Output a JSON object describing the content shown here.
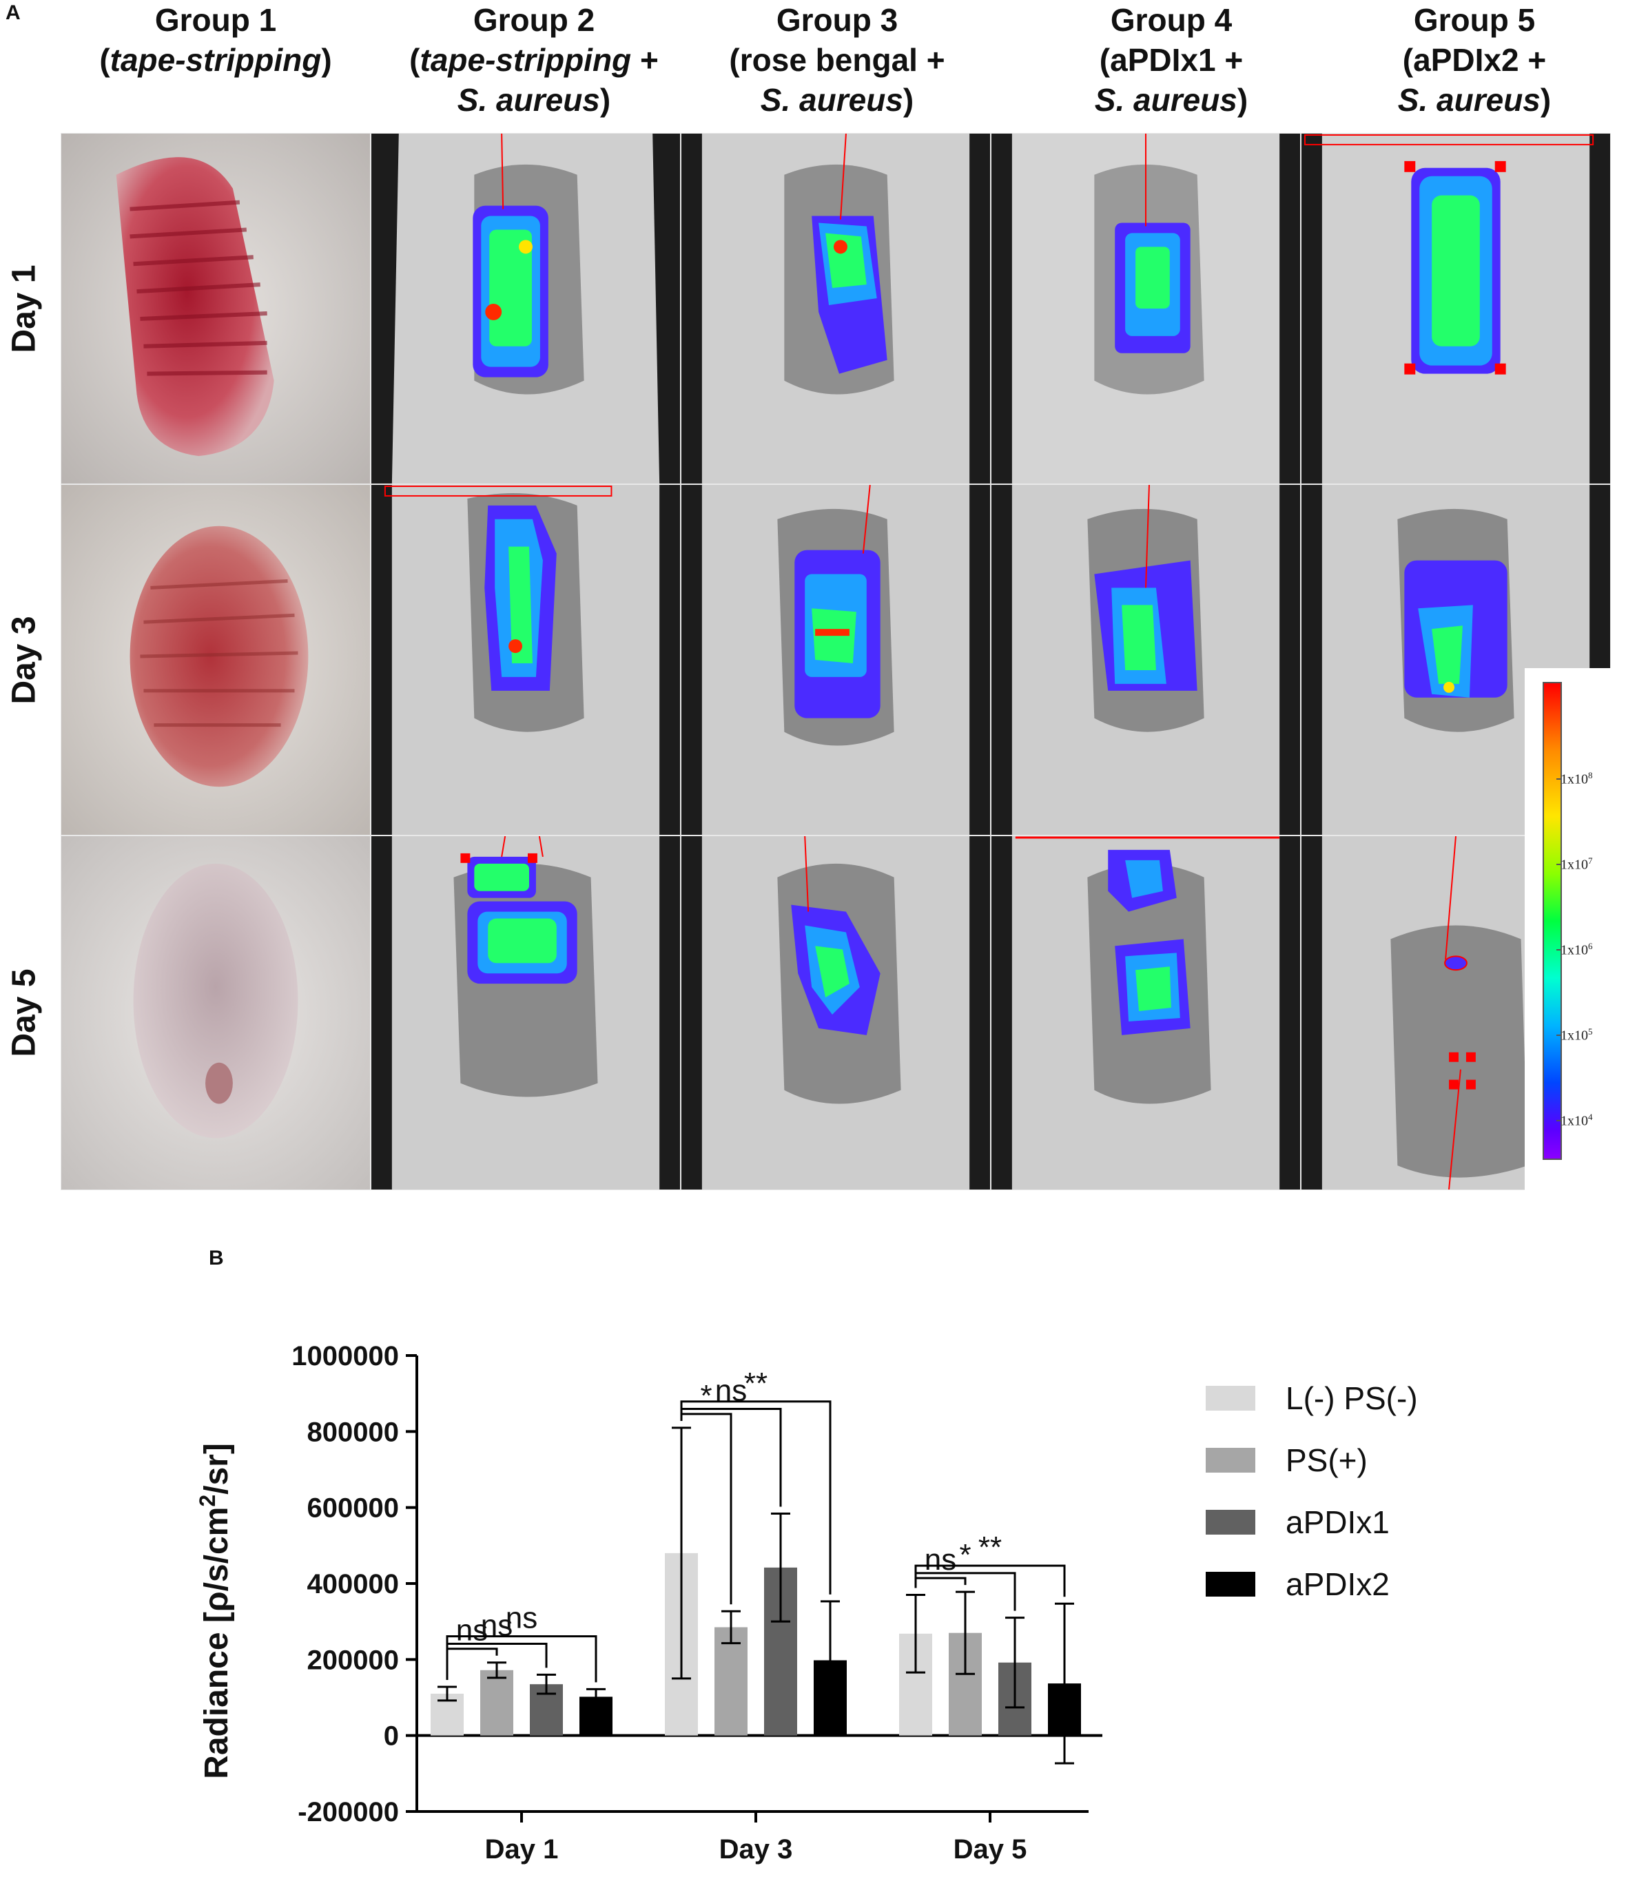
{
  "panel_a": {
    "label": "A",
    "columns": [
      {
        "line1": "Group 1",
        "line2": "(tape-stripping)",
        "line3": ""
      },
      {
        "line1": "Group 2",
        "line2": "(tape-stripping +",
        "line3": "S. aureus)"
      },
      {
        "line1": "Group 3",
        "line2": "(rose bengal +",
        "line3": "S. aureus)"
      },
      {
        "line1": "Group 4",
        "line2": "(aPDIx1 +",
        "line3": "S. aureus)"
      },
      {
        "line1": "Group 5",
        "line2": "(aPDIx2 +",
        "line3": "S. aureus)"
      }
    ],
    "rows": [
      "Day 1",
      "Day 3",
      "Day 5"
    ],
    "colorbar": {
      "ticks": [
        {
          "base": "1x10",
          "exp": "8"
        },
        {
          "base": "1x10",
          "exp": "7"
        },
        {
          "base": "1x10",
          "exp": "6"
        },
        {
          "base": "1x10",
          "exp": "5"
        },
        {
          "base": "1x10",
          "exp": "4"
        }
      ]
    }
  },
  "panel_b": {
    "label": "B",
    "chart_data": {
      "type": "bar",
      "categories": [
        "Day 1",
        "Day 3",
        "Day 5"
      ],
      "ylabel": "Radiance [ρ/s/cm²/sr]",
      "ylabel_parts": {
        "pre": "Radiance [ρ/s/cm",
        "sup": "2",
        "post": "/sr]"
      },
      "ylim": [
        -200000,
        1000000
      ],
      "yticks": [
        -200000,
        0,
        200000,
        400000,
        600000,
        800000,
        1000000
      ],
      "ytick_labels": [
        "-200000",
        "0",
        "200000",
        "400000",
        "600000",
        "800000",
        "1000000"
      ],
      "legend_position": "right",
      "series": [
        {
          "name": "L(-) PS(-)",
          "color": "#d9d9d9",
          "values": [
            110000,
            480000,
            268000
          ],
          "err": [
            18000,
            330000,
            102000
          ]
        },
        {
          "name": "PS(+)",
          "color": "#a6a6a6",
          "values": [
            172000,
            285000,
            270000
          ],
          "err": [
            20000,
            42000,
            108000
          ]
        },
        {
          "name": "aPDIx1",
          "color": "#616161",
          "values": [
            135000,
            442000,
            192000
          ],
          "err": [
            25000,
            142000,
            118000
          ]
        },
        {
          "name": "aPDIx2",
          "color": "#000000",
          "values": [
            102000,
            198000,
            137000
          ],
          "err": [
            20000,
            155000,
            210000
          ]
        }
      ],
      "significance": [
        {
          "group": 0,
          "from": 0,
          "to": 1,
          "label": "ns",
          "level": 0
        },
        {
          "group": 0,
          "from": 0,
          "to": 2,
          "label": "ns",
          "level": 1
        },
        {
          "group": 0,
          "from": 0,
          "to": 3,
          "label": "ns",
          "level": 2
        },
        {
          "group": 1,
          "from": 0,
          "to": 1,
          "label": "*",
          "level": 0
        },
        {
          "group": 1,
          "from": 0,
          "to": 2,
          "label": "ns",
          "level": 1
        },
        {
          "group": 1,
          "from": 0,
          "to": 3,
          "label": "**",
          "level": 2
        },
        {
          "group": 2,
          "from": 0,
          "to": 1,
          "label": "ns",
          "level": 0
        },
        {
          "group": 2,
          "from": 0,
          "to": 2,
          "label": "*",
          "level": 1
        },
        {
          "group": 2,
          "from": 0,
          "to": 3,
          "label": "**",
          "level": 2
        }
      ]
    }
  }
}
